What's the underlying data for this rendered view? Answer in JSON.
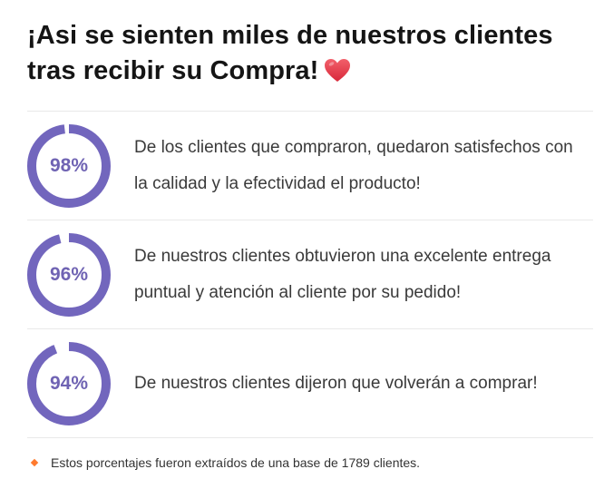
{
  "heading": {
    "line1": "¡Asi se sienten miles de nuestros clientes",
    "line2": "tras recibir su Compra!",
    "heart_icon": "heart-icon",
    "heart_color": "#e23b4a"
  },
  "stats": [
    {
      "percent_label": "98%",
      "percent_value": 98,
      "text": "De los clientes que compraron, quedaron satisfechos con la calidad y la efectividad el producto!"
    },
    {
      "percent_label": "96%",
      "percent_value": 96,
      "text": "De nuestros clientes obtuvieron una excelente entrega puntual y atención al cliente por su pedido!"
    },
    {
      "percent_label": "94%",
      "percent_value": 94,
      "text": "De nuestros clientes dijeron que volverán a comprar!"
    }
  ],
  "footnote": {
    "text": "Estos porcentajes fueron extraídos de una base de 1789 clientes."
  },
  "colors": {
    "ring": "#7266bd",
    "ring_track": "#ffffff",
    "percent_text": "#6f63b3",
    "bullet": "#ff7a2e"
  }
}
